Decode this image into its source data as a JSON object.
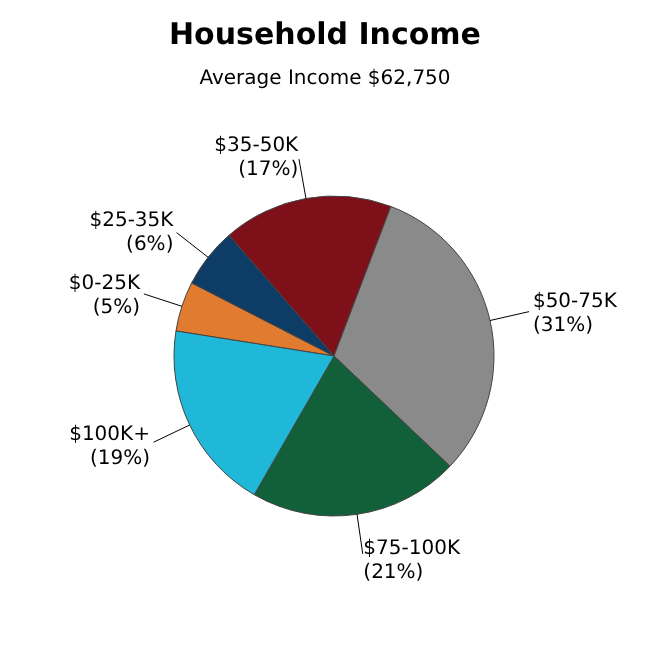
{
  "chart_data": {
    "type": "pie",
    "title": "Household Income",
    "subtitle": "Average Income  $62,750",
    "categories": [
      "$0-25K",
      "$25-35K",
      "$35-50K",
      "$50-75K",
      "$75-100K",
      "$100K+"
    ],
    "values": [
      5,
      6,
      17,
      31,
      21,
      19
    ],
    "value_labels": [
      "(5%)",
      "(6%)",
      "(17%)",
      "(31%)",
      "(21%)",
      "(19%)"
    ],
    "colors": [
      "#e07b30",
      "#0d3d66",
      "#7d1018",
      "#8a8a8a",
      "#12603a",
      "#20b8d8"
    ],
    "legend": false
  }
}
